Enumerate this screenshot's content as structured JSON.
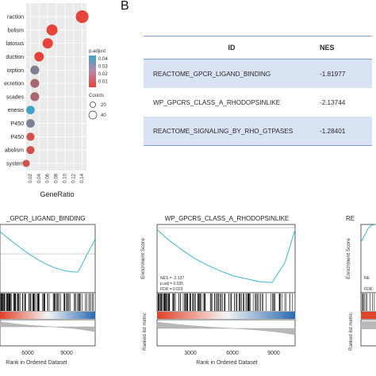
{
  "panel_b_label": "B",
  "dotplot": {
    "categories": [
      "raction",
      "bolism",
      "latosus",
      "duction",
      "orption",
      "ecretion",
      "scades",
      "enesis",
      "P450",
      "P450",
      "abolism",
      "system"
    ],
    "gene_ratio": [
      0.14,
      0.07,
      0.06,
      0.04,
      0.03,
      0.03,
      0.03,
      0.02,
      0.02,
      0.02,
      0.02,
      0.01
    ],
    "p_adjust": [
      0.005,
      0.005,
      0.005,
      0.005,
      0.03,
      0.02,
      0.02,
      0.045,
      0.03,
      0.01,
      0.01,
      0.01
    ],
    "counts": [
      45,
      30,
      25,
      20,
      16,
      16,
      16,
      14,
      14,
      12,
      12,
      8
    ],
    "x_ticks": [
      "0.02",
      "0.04",
      "0.06",
      "0.08",
      "0.10",
      "0.12",
      "0.14"
    ],
    "xlabel": "GeneRatio",
    "colorbar": {
      "title": "p.adjust",
      "ticks": [
        "0.04",
        "0.03",
        "0.02",
        "0.01"
      ],
      "low_color": "#e6443a",
      "high_color": "#3fa4c8"
    },
    "size_legend": {
      "title": "Counts",
      "values": [
        "20",
        "40"
      ]
    }
  },
  "table": {
    "headers": {
      "id": "ID",
      "nes": "NES"
    },
    "rows": [
      {
        "id": "REACTOME_GPCR_LIGAND_BINDING",
        "nes": "-1.81977"
      },
      {
        "id": "WP_GPCRS_CLASS_A_RHODOPSINLIKE",
        "nes": "-2.13744"
      },
      {
        "id": "REACTOME_SIGNALING_BY_RHO_GTPASES",
        "nes": "-1.28401"
      }
    ]
  },
  "gsea": {
    "left_title": "_GPCR_LIGAND_BINDING",
    "mid_title": "WP_GPCRS_CLASS_A_RHODOPSINLIKE",
    "right_title": "RE",
    "ylabel_es": "Enrichment Score",
    "ylabel_rank": "Ranked list metric",
    "xlabel": "Rank in Ordered Dataset",
    "left_x_ticks": [
      "6000",
      "9000"
    ],
    "mid_x_ticks": [
      "3000",
      "6000",
      "9000"
    ],
    "stats": [
      "NES = -2.137",
      "p.adj = 0.035",
      "FDR = 0.029"
    ],
    "right_stats": [
      "NE",
      "FDR"
    ],
    "es_color": "#3fb8cf"
  },
  "chart_data": [
    {
      "type": "scatter",
      "name": "dotplot",
      "xlabel": "GeneRatio",
      "xlim": [
        0.01,
        0.15
      ],
      "y": [
        "raction",
        "bolism",
        "latosus",
        "duction",
        "orption",
        "ecretion",
        "scades",
        "enesis",
        "P450",
        "P450",
        "abolism",
        "system"
      ],
      "x": [
        0.14,
        0.07,
        0.06,
        0.04,
        0.03,
        0.03,
        0.03,
        0.02,
        0.02,
        0.02,
        0.02,
        0.01
      ]
    },
    {
      "type": "table",
      "columns": [
        "ID",
        "NES"
      ],
      "rows": [
        [
          "REACTOME_GPCR_LIGAND_BINDING",
          -1.81977
        ],
        [
          "WP_GPCRS_CLASS_A_RHODOPSINLIKE",
          -2.13744
        ],
        [
          "REACTOME_SIGNALING_BY_RHO_GTPASES",
          -1.28401
        ]
      ]
    },
    {
      "type": "line",
      "title": "WP_GPCRS_CLASS_A_RHODOPSINLIKE",
      "xlabel": "Rank in Ordered Dataset",
      "ylabel": "Enrichment Score",
      "x": [
        0,
        1000,
        2000,
        3000,
        4000,
        5000,
        6000,
        7000,
        8000,
        9000,
        10000,
        10800
      ],
      "y": [
        0.0,
        -0.12,
        -0.22,
        -0.31,
        -0.38,
        -0.44,
        -0.49,
        -0.52,
        -0.55,
        -0.56,
        -0.35,
        0.0
      ]
    }
  ]
}
